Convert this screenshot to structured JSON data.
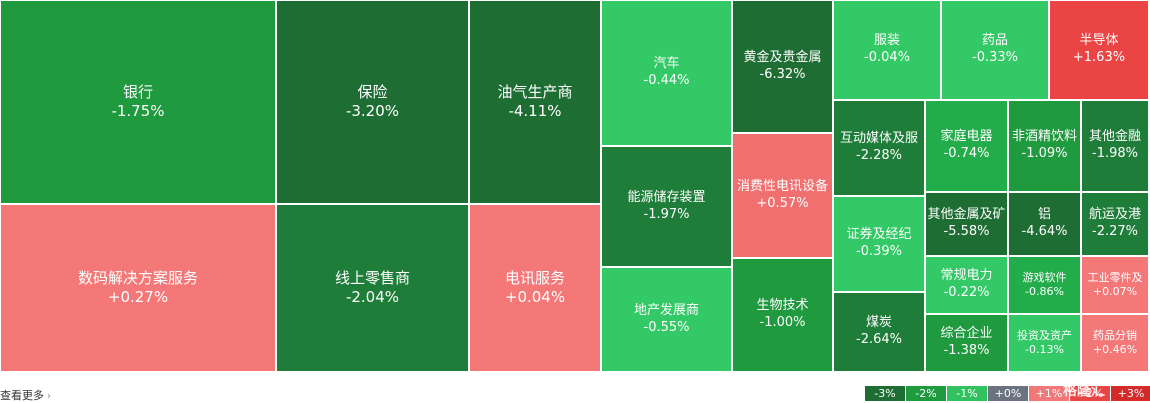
{
  "chart_data": {
    "type": "treemap",
    "tiles": [
      {
        "name": "银行",
        "change": "-1.75%",
        "value": -1.75
      },
      {
        "name": "数码解决方案服务",
        "change": "+0.27%",
        "value": 0.27
      },
      {
        "name": "保险",
        "change": "-3.20%",
        "value": -3.2
      },
      {
        "name": "线上零售商",
        "change": "-2.04%",
        "value": -2.04
      },
      {
        "name": "油气生产商",
        "change": "-4.11%",
        "value": -4.11
      },
      {
        "name": "电讯服务",
        "change": "+0.04%",
        "value": 0.04
      },
      {
        "name": "汽车",
        "change": "-0.44%",
        "value": -0.44
      },
      {
        "name": "能源储存装置",
        "change": "-1.97%",
        "value": -1.97
      },
      {
        "name": "地产发展商",
        "change": "-0.55%",
        "value": -0.55
      },
      {
        "name": "黄金及贵金属",
        "change": "-6.32%",
        "value": -6.32
      },
      {
        "name": "消费性电讯设备",
        "change": "+0.57%",
        "value": 0.57
      },
      {
        "name": "生物技术",
        "change": "-1.00%",
        "value": -1.0
      },
      {
        "name": "服装",
        "change": "-0.04%",
        "value": -0.04
      },
      {
        "name": "药品",
        "change": "-0.33%",
        "value": -0.33
      },
      {
        "name": "半导体",
        "change": "+1.63%",
        "value": 1.63
      },
      {
        "name": "互动媒体及服",
        "change": "-2.28%",
        "value": -2.28
      },
      {
        "name": "家庭电器",
        "change": "-0.74%",
        "value": -0.74
      },
      {
        "name": "非酒精饮料",
        "change": "-1.09%",
        "value": -1.09
      },
      {
        "name": "其他金融",
        "change": "-1.98%",
        "value": -1.98
      },
      {
        "name": "证券及经纪",
        "change": "-0.39%",
        "value": -0.39
      },
      {
        "name": "其他金属及矿",
        "change": "-5.58%",
        "value": -5.58
      },
      {
        "name": "铝",
        "change": "-4.64%",
        "value": -4.64
      },
      {
        "name": "航运及港",
        "change": "-2.27%",
        "value": -2.27
      },
      {
        "name": "常规电力",
        "change": "-0.22%",
        "value": -0.22
      },
      {
        "name": "游戏软件",
        "change": "-0.86%",
        "value": -0.86
      },
      {
        "name": "工业零件及",
        "change": "+0.07%",
        "value": 0.07
      },
      {
        "name": "煤炭",
        "change": "-2.64%",
        "value": -2.64
      },
      {
        "name": "综合企业",
        "change": "-1.38%",
        "value": -1.38
      },
      {
        "name": "投资及资产",
        "change": "-0.13%",
        "value": -0.13
      },
      {
        "name": "药品分销",
        "change": "+0.46%",
        "value": 0.46
      }
    ],
    "legend": [
      {
        "label": "-3%",
        "color": "#1e6e34"
      },
      {
        "label": "-2%",
        "color": "#1f9a3e"
      },
      {
        "label": "-1%",
        "color": "#31c25f"
      },
      {
        "label": "+0%",
        "color": "#6b7280"
      },
      {
        "label": "+1%",
        "color": "#f07878"
      },
      {
        "label": "+2%",
        "color": "#ea4545"
      },
      {
        "label": "+3%",
        "color": "#d42a2a"
      }
    ]
  },
  "footer": {
    "more_label": "查看更多",
    "more_chevron": "›",
    "watermark": "格隆汇"
  }
}
